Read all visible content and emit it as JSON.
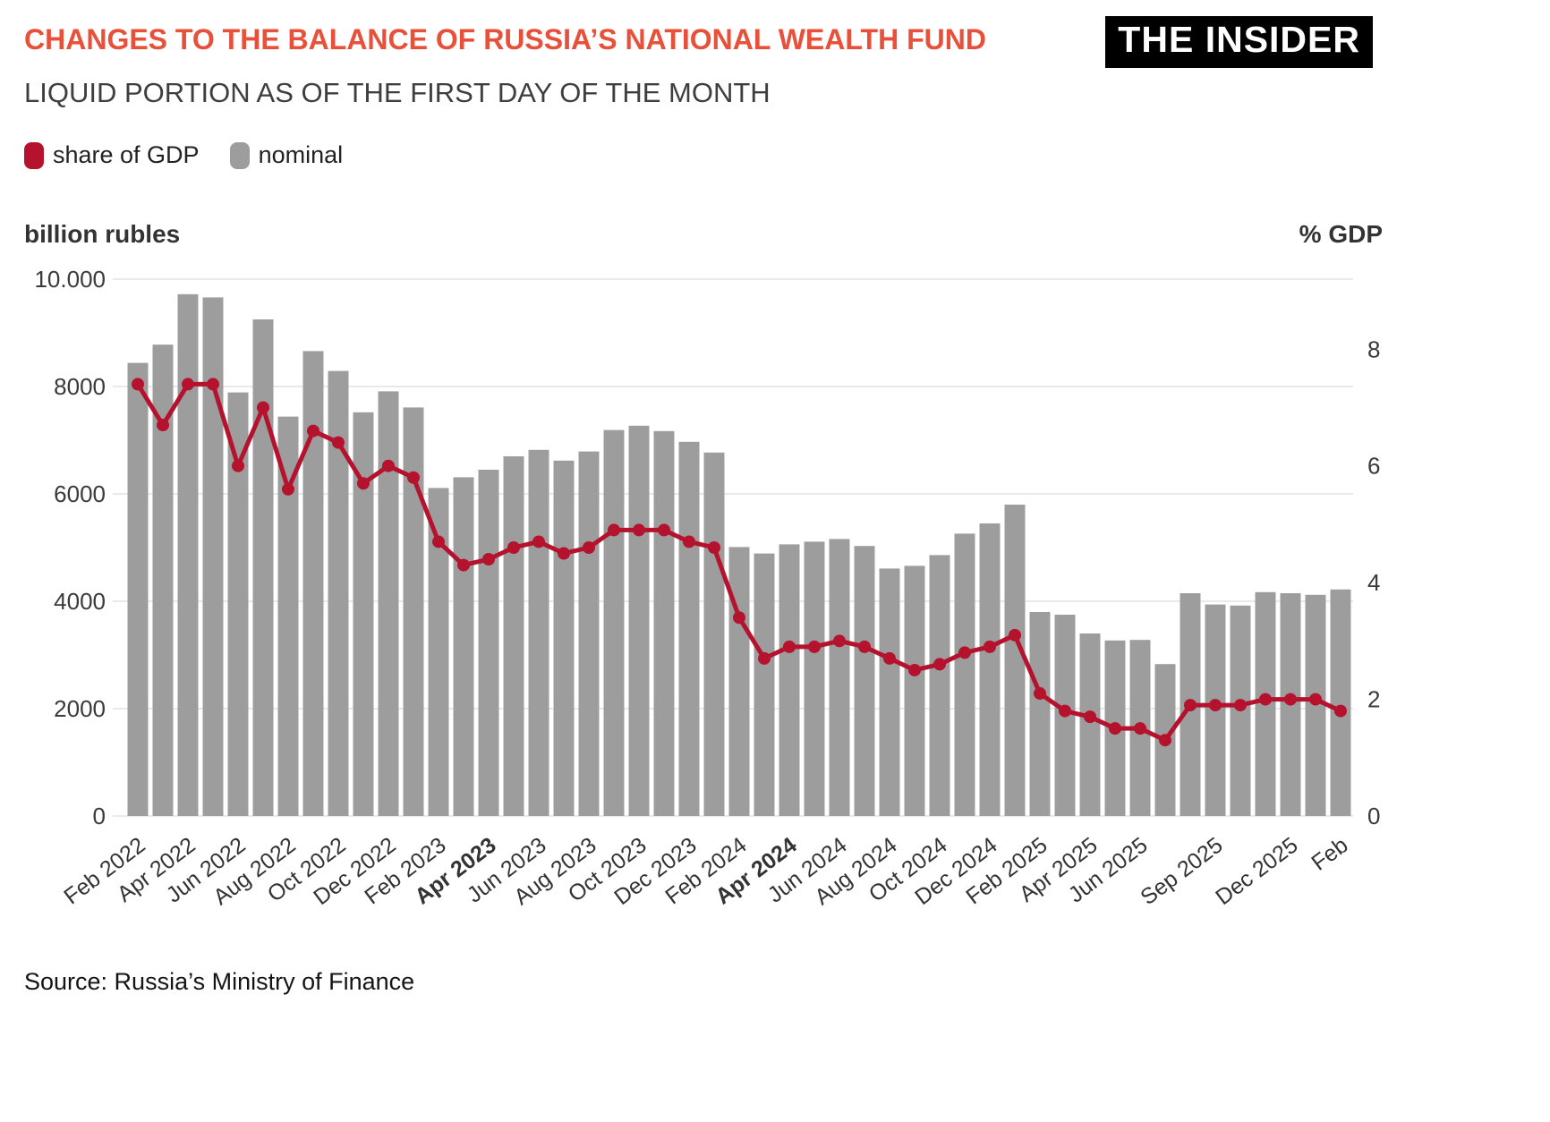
{
  "header": {
    "title": "CHANGES TO THE BALANCE OF RUSSIA’S NATIONAL WEALTH FUND",
    "subtitle": "LIQUID PORTION AS OF THE FIRST DAY OF THE MONTH",
    "logo": "THE INSIDER",
    "title_color": "#e8503a"
  },
  "legend": [
    {
      "label": "share of GDP",
      "color": "#b5122e"
    },
    {
      "label": "nominal",
      "color": "#9d9d9d"
    }
  ],
  "footer": {
    "source": "Source: Russia’s Ministry of Finance"
  },
  "chart_data": {
    "type": "bar",
    "subtype": "bar-and-line-dual-axis",
    "grid": "horizontal",
    "categories": [
      "Feb 2022",
      "Mar 2022",
      "Apr 2022",
      "May 2022",
      "Jun 2022",
      "Jul 2022",
      "Aug 2022",
      "Sep 2022",
      "Oct 2022",
      "Nov 2022",
      "Dec 2022",
      "Jan 2023",
      "Feb 2023",
      "Mar 2023",
      "Apr 2023",
      "May 2023",
      "Jun 2023",
      "Jul 2023",
      "Aug 2023",
      "Sep 2023",
      "Oct 2023",
      "Nov 2023",
      "Dec 2023",
      "Jan 2024",
      "Feb 2024",
      "Mar 2024",
      "Apr 2024",
      "May 2024",
      "Jun 2024",
      "Jul 2024",
      "Aug 2024",
      "Sep 2024",
      "Oct 2024",
      "Nov 2024",
      "Dec 2024",
      "Jan 2025",
      "Feb 2025",
      "Mar 2025",
      "Apr 2025",
      "May 2025",
      "Jun 2025",
      "Jul 2025",
      "Aug 2025",
      "Sep 2025",
      "Oct 2025",
      "Nov 2025",
      "Dec 2025",
      "Jan 2026",
      "Feb 2026"
    ],
    "series": [
      {
        "name": "nominal",
        "type": "bar",
        "axis": "left",
        "unit": "billion rubles",
        "color": "#9d9d9d",
        "values": [
          8440,
          8780,
          9720,
          9660,
          7890,
          9250,
          7440,
          8660,
          8290,
          7520,
          7910,
          7610,
          6110,
          6310,
          6450,
          6700,
          6820,
          6620,
          6790,
          7190,
          7270,
          7170,
          6970,
          6770,
          5010,
          4890,
          5060,
          5110,
          5160,
          5030,
          4610,
          4660,
          4860,
          5260,
          5450,
          5800,
          3800,
          3750,
          3400,
          3270,
          3280,
          2830,
          4150,
          3940,
          3920,
          4170,
          4150,
          4120,
          4220
        ]
      },
      {
        "name": "share of GDP",
        "type": "line",
        "axis": "right",
        "unit": "% GDP",
        "color": "#b5122e",
        "values": [
          7.4,
          6.7,
          7.4,
          7.4,
          6.0,
          7.0,
          5.6,
          6.6,
          6.4,
          5.7,
          6.0,
          5.8,
          4.7,
          4.3,
          4.4,
          4.6,
          4.7,
          4.5,
          4.6,
          4.9,
          4.9,
          4.9,
          4.7,
          4.6,
          3.4,
          2.7,
          2.9,
          2.9,
          3.0,
          2.9,
          2.7,
          2.5,
          2.6,
          2.8,
          2.9,
          3.1,
          2.1,
          1.8,
          1.7,
          1.5,
          1.5,
          1.3,
          1.9,
          1.9,
          1.9,
          2.0,
          2.0,
          2.0,
          1.8
        ]
      }
    ],
    "left_axis": {
      "title": "billion rubles",
      "min": 0,
      "max": 10000,
      "ticks": [
        {
          "value": 10000,
          "label": "10.000"
        },
        {
          "value": 8000,
          "label": "8000"
        },
        {
          "value": 6000,
          "label": "6000"
        },
        {
          "value": 4000,
          "label": "4000"
        },
        {
          "value": 2000,
          "label": "2000"
        },
        {
          "value": 0,
          "label": "0"
        }
      ]
    },
    "right_axis": {
      "title": "% GDP",
      "min": 0,
      "top_value": 9.2,
      "ticks": [
        {
          "value": 8,
          "label": "8"
        },
        {
          "value": 6,
          "label": "6"
        },
        {
          "value": 4,
          "label": "4"
        },
        {
          "value": 2,
          "label": "2"
        },
        {
          "value": 0,
          "label": "0"
        }
      ]
    },
    "x_ticks": [
      {
        "index": 0,
        "label": "Feb 2022"
      },
      {
        "index": 2,
        "label": "Apr 2022"
      },
      {
        "index": 4,
        "label": "Jun 2022"
      },
      {
        "index": 6,
        "label": "Aug 2022"
      },
      {
        "index": 8,
        "label": "Oct 2022"
      },
      {
        "index": 10,
        "label": "Dec 2022"
      },
      {
        "index": 12,
        "label": "Feb 2023"
      },
      {
        "index": 14,
        "label": "Apr 2023",
        "bold": true
      },
      {
        "index": 16,
        "label": "Jun 2023"
      },
      {
        "index": 18,
        "label": "Aug 2023"
      },
      {
        "index": 20,
        "label": "Oct 2023"
      },
      {
        "index": 22,
        "label": "Dec 2023"
      },
      {
        "index": 24,
        "label": "Feb 2024"
      },
      {
        "index": 26,
        "label": "Apr 2024",
        "bold": true
      },
      {
        "index": 28,
        "label": "Jun 2024"
      },
      {
        "index": 30,
        "label": "Aug 2024"
      },
      {
        "index": 32,
        "label": "Oct 2024"
      },
      {
        "index": 34,
        "label": "Dec 2024"
      },
      {
        "index": 36,
        "label": "Feb 2025"
      },
      {
        "index": 38,
        "label": "Apr 2025"
      },
      {
        "index": 40,
        "label": "Jun 2025"
      },
      {
        "index": 43,
        "label": "Sep 2025"
      },
      {
        "index": 46,
        "label": "Dec 2025"
      },
      {
        "index": 48,
        "label": "Feb"
      }
    ]
  }
}
